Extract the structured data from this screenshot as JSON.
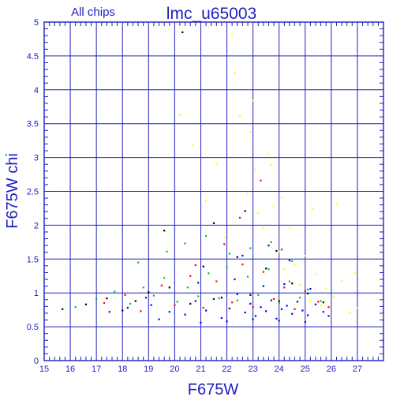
{
  "chart_data": {
    "type": "scatter",
    "title": "lmc_u65003",
    "subtitle": "All chips",
    "xlabel": "F675W",
    "ylabel": "F675W chi",
    "xlim": [
      15,
      28
    ],
    "ylim": [
      0,
      5
    ],
    "x_ticks": [
      "15",
      "16",
      "17",
      "18",
      "19",
      "20",
      "21",
      "22",
      "23",
      "24",
      "25",
      "26",
      "27"
    ],
    "y_ticks": [
      "0",
      "0.5",
      "1",
      "1.5",
      "2",
      "2.5",
      "3",
      "3.5",
      "4",
      "4.5",
      "5"
    ],
    "grid": true,
    "colors": {
      "frame": "#1f1fbf",
      "grid": "#1f1fbf",
      "series_1": "#0000ff",
      "series_2": "#00cc00",
      "series_3": "#ff0000",
      "series_4": "#ffff00",
      "series_5": "#000000"
    },
    "series": [
      {
        "color": "#0000ff",
        "points": [
          [
            19.1,
            0.82
          ],
          [
            19.8,
            0.72
          ],
          [
            20.4,
            0.68
          ],
          [
            20.8,
            0.88
          ],
          [
            21.2,
            0.74
          ],
          [
            21.5,
            0.91
          ],
          [
            21.8,
            0.63
          ],
          [
            22.1,
            0.77
          ],
          [
            22.4,
            0.98
          ],
          [
            22.7,
            0.71
          ],
          [
            22.9,
            0.84
          ],
          [
            23.1,
            0.66
          ],
          [
            23.3,
            0.79
          ],
          [
            23.5,
            0.73
          ],
          [
            23.7,
            0.89
          ],
          [
            23.9,
            0.62
          ],
          [
            24.1,
            0.76
          ],
          [
            24.3,
            0.81
          ],
          [
            24.5,
            0.69
          ],
          [
            24.7,
            0.87
          ],
          [
            24.9,
            0.74
          ],
          [
            25.1,
            0.67
          ],
          [
            25.4,
            0.83
          ],
          [
            25.7,
            0.72
          ],
          [
            25.9,
            0.66
          ],
          [
            21.0,
            0.56
          ],
          [
            22.0,
            0.58
          ],
          [
            23.0,
            0.61
          ],
          [
            24.0,
            0.59
          ],
          [
            25.0,
            0.57
          ],
          [
            20.9,
            1.15
          ],
          [
            22.3,
            1.2
          ],
          [
            23.4,
            1.1
          ],
          [
            24.2,
            1.13
          ],
          [
            25.2,
            1.06
          ],
          [
            22.6,
            1.55
          ],
          [
            23.6,
            1.7
          ],
          [
            24.4,
            1.48
          ],
          [
            19.4,
            0.61
          ],
          [
            18.9,
            0.93
          ],
          [
            18.2,
            0.78
          ],
          [
            17.5,
            0.72
          ]
        ]
      },
      {
        "color": "#00cc00",
        "points": [
          [
            16.2,
            0.79
          ],
          [
            17.0,
            0.91
          ],
          [
            18.3,
            0.84
          ],
          [
            18.8,
            1.08
          ],
          [
            19.2,
            0.96
          ],
          [
            19.6,
            1.22
          ],
          [
            20.1,
            0.87
          ],
          [
            20.5,
            1.08
          ],
          [
            20.9,
            0.95
          ],
          [
            21.3,
            1.29
          ],
          [
            21.7,
            0.92
          ],
          [
            22.0,
            1.38
          ],
          [
            22.4,
            0.89
          ],
          [
            22.8,
            1.24
          ],
          [
            23.2,
            0.97
          ],
          [
            23.6,
            1.35
          ],
          [
            24.0,
            0.85
          ],
          [
            24.4,
            1.17
          ],
          [
            24.8,
            0.93
          ],
          [
            25.1,
            1.05
          ],
          [
            25.6,
            0.88
          ],
          [
            19.7,
            1.61
          ],
          [
            20.4,
            1.73
          ],
          [
            21.2,
            1.84
          ],
          [
            22.1,
            1.58
          ],
          [
            22.9,
            1.66
          ],
          [
            23.7,
            1.75
          ],
          [
            24.5,
            1.47
          ],
          [
            18.6,
            1.45
          ],
          [
            17.7,
            1.02
          ]
        ]
      },
      {
        "color": "#ff0000",
        "points": [
          [
            17.3,
            0.85
          ],
          [
            18.1,
            0.97
          ],
          [
            18.7,
            0.73
          ],
          [
            19.5,
            1.11
          ],
          [
            20.0,
            0.82
          ],
          [
            20.6,
            1.25
          ],
          [
            21.1,
            0.78
          ],
          [
            21.6,
            1.17
          ],
          [
            22.2,
            0.86
          ],
          [
            22.6,
            1.42
          ],
          [
            23.0,
            0.79
          ],
          [
            23.4,
            1.31
          ],
          [
            23.8,
            0.91
          ],
          [
            24.2,
            1.08
          ],
          [
            24.6,
            0.76
          ],
          [
            25.0,
            1.03
          ],
          [
            25.5,
            0.87
          ],
          [
            25.9,
            0.79
          ],
          [
            21.9,
            1.72
          ],
          [
            22.5,
            2.11
          ],
          [
            23.3,
            2.66
          ],
          [
            24.1,
            1.64
          ],
          [
            20.8,
            1.41
          ]
        ]
      },
      {
        "color": "#ffff00",
        "points": [
          [
            20.2,
            3.63
          ],
          [
            20.7,
            3.18
          ],
          [
            21.2,
            2.36
          ],
          [
            21.6,
            2.91
          ],
          [
            21.9,
            1.82
          ],
          [
            22.2,
            4.82
          ],
          [
            22.3,
            4.25
          ],
          [
            22.5,
            3.61
          ],
          [
            22.8,
            2.47
          ],
          [
            23.0,
            3.84
          ],
          [
            23.2,
            2.18
          ],
          [
            23.4,
            1.96
          ],
          [
            23.6,
            3.05
          ],
          [
            23.8,
            2.28
          ],
          [
            24.0,
            1.61
          ],
          [
            24.2,
            1.35
          ],
          [
            24.4,
            1.95
          ],
          [
            24.6,
            1.42
          ],
          [
            24.8,
            1.12
          ],
          [
            25.0,
            1.55
          ],
          [
            25.2,
            0.89
          ],
          [
            25.4,
            1.28
          ],
          [
            25.6,
            0.82
          ],
          [
            25.8,
            1.06
          ],
          [
            26.1,
            0.94
          ],
          [
            26.4,
            1.18
          ],
          [
            26.7,
            0.71
          ],
          [
            27.0,
            0.78
          ],
          [
            26.9,
            1.3
          ],
          [
            23.1,
            2.82
          ],
          [
            24.1,
            2.41
          ],
          [
            25.3,
            2.24
          ],
          [
            26.2,
            2.31
          ],
          [
            22.9,
            3.38
          ],
          [
            23.7,
            2.89
          ]
        ]
      },
      {
        "color": "#000000",
        "points": [
          [
            15.7,
            0.76
          ],
          [
            16.6,
            0.83
          ],
          [
            17.4,
            0.92
          ],
          [
            18.0,
            0.74
          ],
          [
            18.5,
            0.88
          ],
          [
            19.0,
            1.01
          ],
          [
            19.8,
            1.08
          ],
          [
            20.3,
            4.85
          ],
          [
            20.6,
            0.84
          ],
          [
            21.1,
            1.39
          ],
          [
            21.8,
            0.93
          ],
          [
            22.4,
            1.53
          ],
          [
            22.9,
            0.97
          ],
          [
            23.5,
            1.36
          ],
          [
            24.0,
            0.88
          ],
          [
            24.5,
            1.14
          ],
          [
            25.1,
            0.99
          ],
          [
            25.7,
            0.86
          ],
          [
            19.6,
            1.92
          ],
          [
            21.5,
            2.03
          ],
          [
            22.7,
            2.21
          ],
          [
            23.9,
            1.62
          ]
        ]
      }
    ]
  }
}
